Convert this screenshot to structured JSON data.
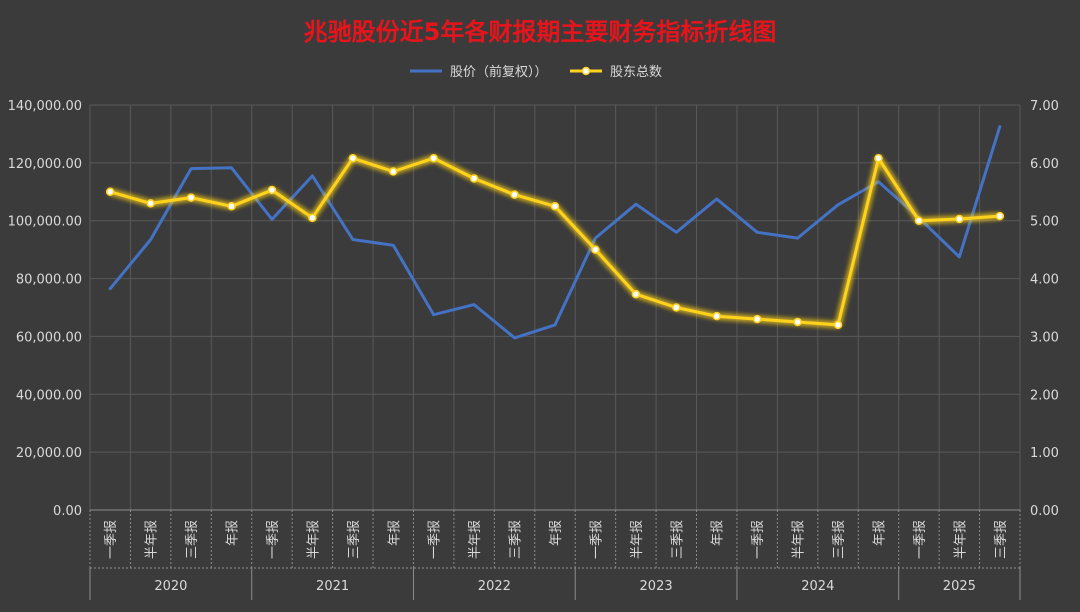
{
  "chart_data": {
    "type": "line",
    "title": "兆驰股份近5年各财报期主要财务指标折线图",
    "title_color": "#e8141c",
    "categories": [
      {
        "year": "2020",
        "quarter": "一季报"
      },
      {
        "year": "2020",
        "quarter": "半年报"
      },
      {
        "year": "2020",
        "quarter": "三季报"
      },
      {
        "year": "2020",
        "quarter": "年报"
      },
      {
        "year": "2021",
        "quarter": "一季报"
      },
      {
        "year": "2021",
        "quarter": "半年报"
      },
      {
        "year": "2021",
        "quarter": "三季报"
      },
      {
        "year": "2021",
        "quarter": "年报"
      },
      {
        "year": "2022",
        "quarter": "一季报"
      },
      {
        "year": "2022",
        "quarter": "半年报"
      },
      {
        "year": "2022",
        "quarter": "三季报"
      },
      {
        "year": "2022",
        "quarter": "年报"
      },
      {
        "year": "2023",
        "quarter": "一季报"
      },
      {
        "year": "2023",
        "quarter": "半年报"
      },
      {
        "year": "2023",
        "quarter": "三季报"
      },
      {
        "year": "2023",
        "quarter": "年报"
      },
      {
        "year": "2024",
        "quarter": "一季报"
      },
      {
        "year": "2024",
        "quarter": "半年报"
      },
      {
        "year": "2024",
        "quarter": "三季报"
      },
      {
        "year": "2024",
        "quarter": "年报"
      },
      {
        "year": "2025",
        "quarter": "一季报"
      },
      {
        "year": "2025",
        "quarter": "半年报"
      },
      {
        "year": "2025",
        "quarter": "三季报"
      }
    ],
    "years": [
      "2020",
      "2021",
      "2022",
      "2023",
      "2024",
      "2025"
    ],
    "series": [
      {
        "name": "股价（前复权））",
        "axis": "left",
        "color": "#4472c4",
        "marker": false,
        "values": [
          76500,
          93500,
          118000,
          118300,
          100500,
          115500,
          93500,
          91500,
          67500,
          71000,
          59500,
          64000,
          94000,
          105700,
          96000,
          107500,
          96000,
          94000,
          105500,
          113500,
          101000,
          87500,
          132500
        ]
      },
      {
        "name": "股东总数",
        "axis": "right",
        "color": "#ffd21f",
        "marker": true,
        "values": [
          5.5,
          5.3,
          5.4,
          5.25,
          5.53,
          5.05,
          6.08,
          5.85,
          6.08,
          5.73,
          5.45,
          5.25,
          4.5,
          3.73,
          3.5,
          3.35,
          3.3,
          3.25,
          3.2,
          6.08,
          5.0,
          5.03,
          5.08
        ]
      }
    ],
    "y_left": {
      "min": 0,
      "max": 140000,
      "step": 20000,
      "ticks": [
        "0.00",
        "20,000.00",
        "40,000.00",
        "60,000.00",
        "80,000.00",
        "100,000.00",
        "120,000.00",
        "140,000.00"
      ]
    },
    "y_right": {
      "min": 0,
      "max": 7,
      "step": 1,
      "ticks": [
        "0.00",
        "1.00",
        "2.00",
        "3.00",
        "4.00",
        "5.00",
        "6.00",
        "7.00"
      ]
    },
    "legend_position": "top",
    "grid": true
  }
}
